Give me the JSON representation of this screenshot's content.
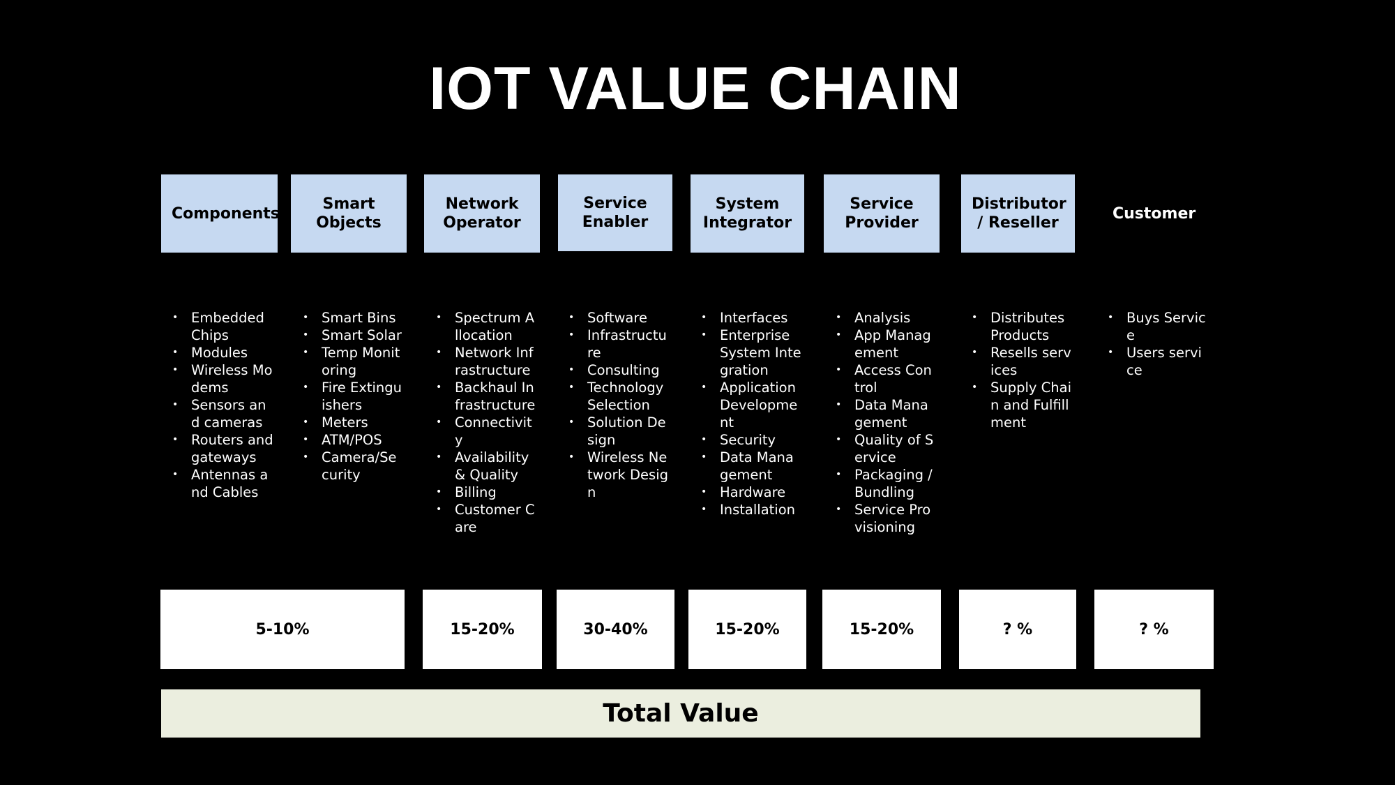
{
  "title": "IOT VALUE CHAIN",
  "stages": [
    {
      "label": "Components",
      "items": [
        "Embedded Chips",
        "Modules",
        "Wireless Modems",
        "Sensors and cameras",
        "Routers and gateways",
        "Antennas and Cables"
      ]
    },
    {
      "label": "Smart Objects",
      "items": [
        "Smart Bins",
        "Smart Solar",
        "Temp Monitoring",
        "Fire Extinguishers",
        "Meters",
        "ATM/POS",
        "Camera/Security"
      ]
    },
    {
      "label": "Network Operator",
      "items": [
        "Spectrum Allocation",
        "Network Infrastructure",
        "Backhaul Infrastructure",
        "Connectivity",
        "Availability & Quality",
        "Billing",
        "Customer Care"
      ]
    },
    {
      "label": "Service Enabler",
      "items": [
        "Software",
        "Infrastructure",
        "Consulting",
        "Technology Selection",
        "Solution Design",
        "Wireless Network Design"
      ]
    },
    {
      "label": "System Integrator",
      "items": [
        "Interfaces",
        "Enterprise System Integration",
        "Application Development",
        "Security",
        "Data Management",
        "Hardware",
        "Installation"
      ]
    },
    {
      "label": "Service Provider",
      "items": [
        "Analysis",
        "App Management",
        "Access Control",
        "Data Management",
        "Quality of Service",
        "Packaging / Bundling",
        "Service Provisioning"
      ]
    },
    {
      "label": "Distributor / Reseller",
      "items": [
        "Distributes Products",
        "Resells services",
        "Supply Chain and Fulfillment"
      ]
    },
    {
      "label": "Customer",
      "items": [
        "Buys Service",
        "Users service"
      ]
    }
  ],
  "value_shares": [
    "5-10%",
    "15-20%",
    "30-40%",
    "15-20%",
    "15-20%",
    "? %",
    "? %"
  ],
  "total_label": "Total Value",
  "colors": {
    "background": "#000000",
    "stage_box": "#c6d9f1",
    "value_box": "#ffffff",
    "total_bar": "#ebeedf"
  }
}
